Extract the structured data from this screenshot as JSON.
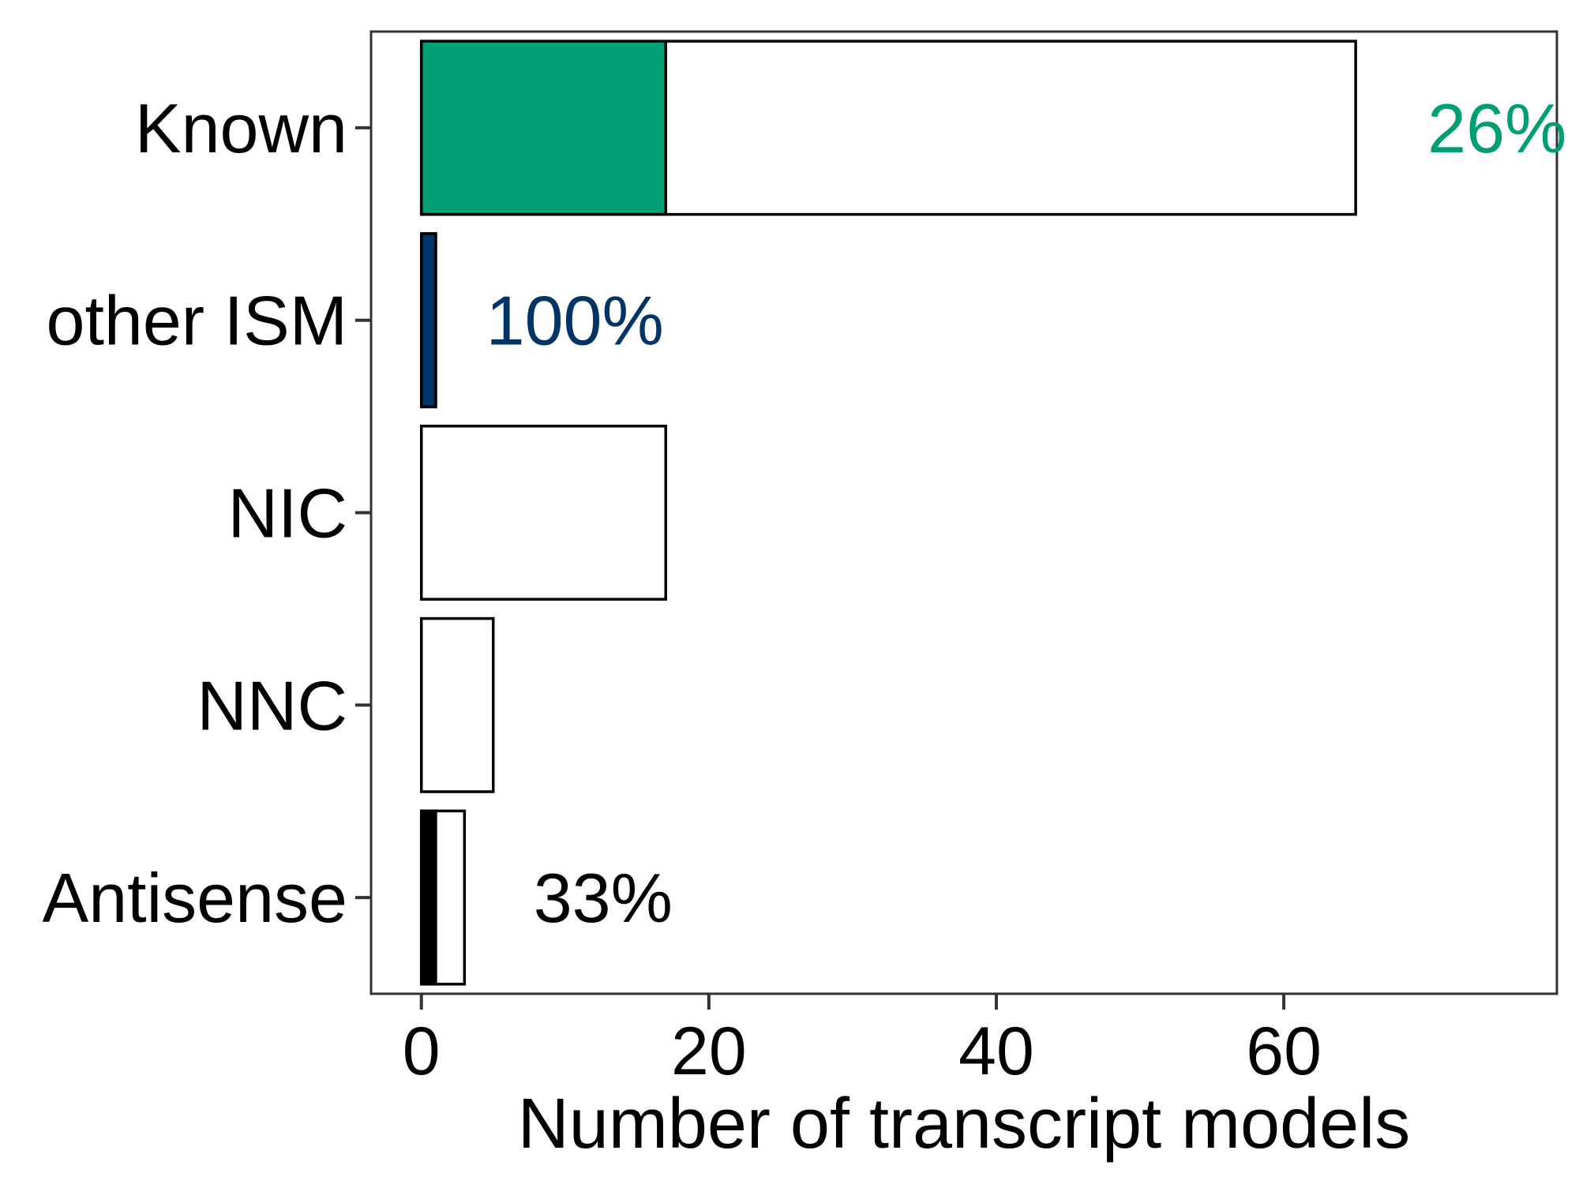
{
  "chart_data": {
    "type": "bar",
    "orientation": "horizontal",
    "xlabel": "Number of transcript models",
    "ylabel": "",
    "xlim": [
      -3.5,
      79
    ],
    "xticks": [
      0,
      20,
      40,
      60
    ],
    "xtick_labels": [
      "0",
      "20",
      "40",
      "60"
    ],
    "grid": false,
    "legend": "none",
    "categories": [
      "Known",
      "other ISM",
      "NIC",
      "NNC",
      "Antisense"
    ],
    "series": [
      {
        "values": [
          65,
          1,
          17,
          5,
          3
        ],
        "color": "#ffffff"
      },
      {
        "values": [
          17,
          1,
          0,
          0,
          1
        ],
        "colors": [
          "#009E73",
          "#003366",
          "#ffffff",
          "#ffffff",
          "#000000"
        ]
      }
    ],
    "annotations": [
      {
        "category": "Known",
        "text": "26%",
        "x": 70,
        "color": "#009E73"
      },
      {
        "category": "other ISM",
        "text": "100%",
        "x": 4.5,
        "color": "#003366"
      },
      {
        "category": "Antisense",
        "text": "33%",
        "x": 7.8,
        "color": "#000000"
      }
    ]
  }
}
